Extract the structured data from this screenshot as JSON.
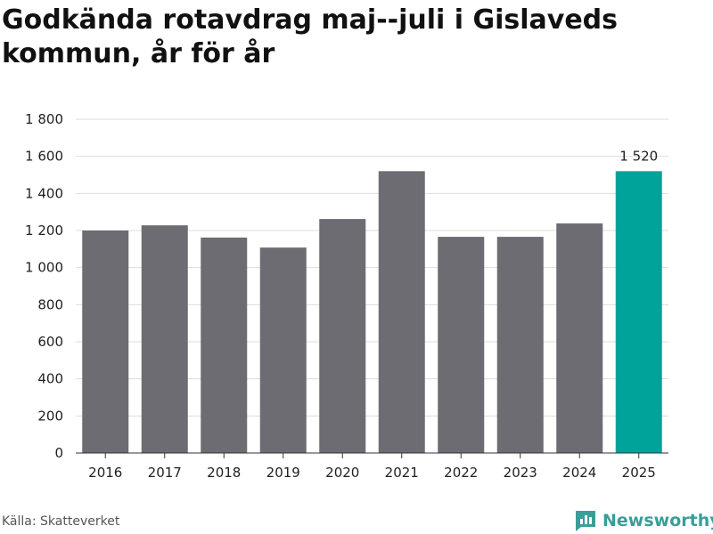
{
  "title": "Godkända rotavdrag maj--juli i Gislaveds kommun, år för år",
  "source": "Källa: Skatteverket",
  "brand": {
    "name": "Newsworthy",
    "icon": "newsworthy-logo-icon",
    "color": "#3a9e98"
  },
  "colors": {
    "bar": "#6d6c72",
    "highlight": "#00a39a",
    "grid": "#dddddd",
    "axis": "#333333"
  },
  "chart_data": {
    "type": "bar",
    "title": "Godkända rotavdrag maj--juli i Gislaveds kommun, år för år",
    "xlabel": "",
    "ylabel": "",
    "categories": [
      "2016",
      "2017",
      "2018",
      "2019",
      "2020",
      "2021",
      "2022",
      "2023",
      "2024",
      "2025"
    ],
    "values": [
      1200,
      1228,
      1162,
      1108,
      1262,
      1520,
      1166,
      1166,
      1238,
      1520
    ],
    "highlight_index": 9,
    "data_labels": [
      {
        "index": 9,
        "text": "1 520"
      }
    ],
    "ylim": [
      0,
      1800
    ],
    "yticks": [
      0,
      200,
      400,
      600,
      800,
      1000,
      1200,
      1400,
      1600,
      1800
    ],
    "ytick_labels": [
      "0",
      "200",
      "400",
      "600",
      "800",
      "1 000",
      "1 200",
      "1 400",
      "1 600",
      "1 800"
    ],
    "grid": true,
    "legend": "none"
  }
}
